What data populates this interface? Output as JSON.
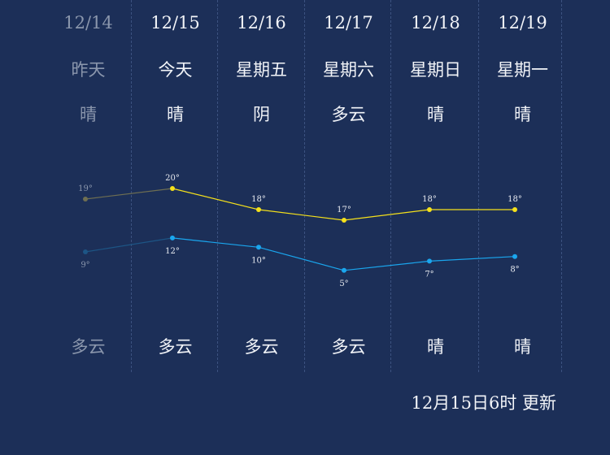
{
  "days": [
    {
      "date": "12/14",
      "dow": "昨天",
      "day_weather": "晴",
      "night_weather": "多云",
      "past": true
    },
    {
      "date": "12/15",
      "dow": "今天",
      "day_weather": "晴",
      "night_weather": "多云",
      "past": false
    },
    {
      "date": "12/16",
      "dow": "星期五",
      "day_weather": "阴",
      "night_weather": "多云",
      "past": false
    },
    {
      "date": "12/17",
      "dow": "星期六",
      "day_weather": "多云",
      "night_weather": "多云",
      "past": false
    },
    {
      "date": "12/18",
      "dow": "星期日",
      "day_weather": "晴",
      "night_weather": "晴",
      "past": false
    },
    {
      "date": "12/19",
      "dow": "星期一",
      "day_weather": "晴",
      "night_weather": "晴",
      "past": false
    }
  ],
  "chart_data": {
    "type": "line",
    "categories": [
      "12/14",
      "12/15",
      "12/16",
      "12/17",
      "12/18",
      "12/19"
    ],
    "series": [
      {
        "values": [
          19,
          20,
          18,
          17,
          18,
          18
        ],
        "labels": [
          "19°",
          "20°",
          "18°",
          "17°",
          "18°",
          "18°"
        ],
        "color": "#f5e11b",
        "past_color": "#6f6f52"
      },
      {
        "values": [
          9,
          12,
          10,
          5,
          7,
          8
        ],
        "labels": [
          "9°",
          "12°",
          "10°",
          "5°",
          "7°",
          "8°"
        ],
        "color": "#1aa6ee",
        "past_color": "#1d5585"
      }
    ],
    "ylim": [
      0,
      25
    ],
    "grid": false,
    "legend": "none"
  },
  "update_text": "12月15日6时 更新",
  "colors": {
    "background": "#1c2f58",
    "text": "#f2f4f8",
    "past_text": "#8b97ad",
    "separator": "#3c5280"
  }
}
